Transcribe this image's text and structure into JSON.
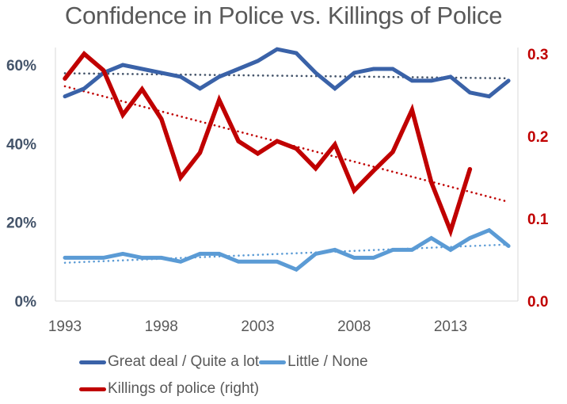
{
  "chart_data": {
    "type": "line",
    "title": "Confidence in Police vs. Killings of Police",
    "xlabel": "",
    "ylabel_left": "",
    "ylabel_right": "",
    "x": [
      1993,
      1994,
      1995,
      1996,
      1997,
      1998,
      1999,
      2000,
      2001,
      2002,
      2003,
      2004,
      2005,
      2006,
      2007,
      2008,
      2009,
      2010,
      2011,
      2012,
      2013,
      2014,
      2015,
      2016
    ],
    "x_ticks": [
      "1993",
      "1998",
      "2003",
      "2008",
      "2013"
    ],
    "y_left": {
      "range": [
        0,
        0.65
      ],
      "ticks": [
        0,
        0.2,
        0.4,
        0.6
      ],
      "tick_labels": [
        "0%",
        "20%",
        "40%",
        "60%"
      ]
    },
    "y_right": {
      "range": [
        0,
        0.31
      ],
      "ticks": [
        0.0,
        0.1,
        0.2,
        0.3
      ],
      "tick_labels": [
        "0.0",
        "0.1",
        "0.2",
        "0.3"
      ]
    },
    "grid": false,
    "legend_position": "bottom",
    "series": [
      {
        "name": "Great deal / Quite a lot",
        "axis": "left",
        "color": "#3A62A8",
        "trendline": {
          "style": "dotted",
          "color": "#44546A"
        },
        "values": [
          0.52,
          0.54,
          0.58,
          0.6,
          0.59,
          0.58,
          0.57,
          0.54,
          0.57,
          0.59,
          0.61,
          0.64,
          0.63,
          0.58,
          0.54,
          0.58,
          0.59,
          0.59,
          0.56,
          0.56,
          0.57,
          0.53,
          0.52,
          0.56
        ]
      },
      {
        "name": "Little / None",
        "axis": "left",
        "color": "#5B9BD5",
        "trendline": {
          "style": "dotted",
          "color": "#5B9BD5"
        },
        "values": [
          0.11,
          0.11,
          0.11,
          0.12,
          0.11,
          0.11,
          0.1,
          0.12,
          0.12,
          0.1,
          0.1,
          0.1,
          0.08,
          0.12,
          0.13,
          0.11,
          0.11,
          0.13,
          0.13,
          0.16,
          0.13,
          0.16,
          0.18,
          0.14
        ]
      },
      {
        "name": "Killings of police (right)",
        "axis": "right",
        "color": "#C00000",
        "trendline": {
          "style": "dotted",
          "color": "#C00000"
        },
        "values": [
          0.27,
          0.3,
          0.28,
          0.226,
          0.257,
          0.221,
          0.15,
          0.18,
          0.244,
          0.194,
          0.179,
          0.194,
          0.185,
          0.161,
          0.19,
          0.134,
          0.158,
          0.181,
          0.232,
          0.144,
          0.085,
          0.16,
          null,
          null
        ]
      }
    ]
  }
}
